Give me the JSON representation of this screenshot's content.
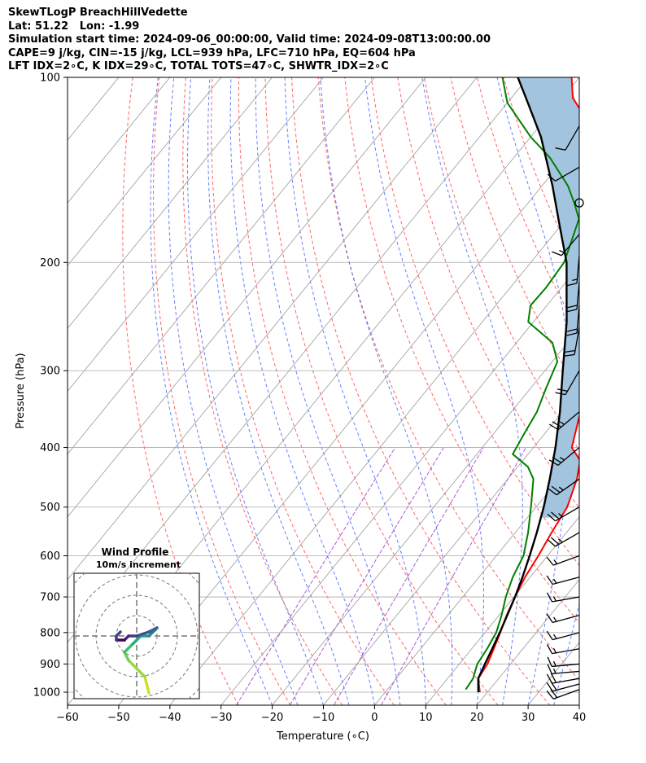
{
  "header": {
    "line1": "SkewTLogP BreachHillVedette",
    "line2": "Lat: 51.22   Lon: -1.99",
    "line3": "Simulation start time: 2024-09-06_00:00:00, Valid time: 2024-09-08T13:00:00.00",
    "line4": "CAPE=9 j/kg, CIN=-15 j/kg, LCL=939 hPa, LFC=710 hPa, EQ=604 hPa",
    "line5": "LFT IDX=2∘C, K IDX=29∘C, TOTAL TOTS=47∘C, SHWTR_IDX=2∘C"
  },
  "chart_data": {
    "type": "skew-t log-p",
    "xlabel": "Temperature (∘C)",
    "ylabel": "Pressure (hPa)",
    "xlim": [
      -60,
      40
    ],
    "ylim": [
      1050,
      100
    ],
    "y_scale": "log",
    "grid": true,
    "x_ticks": [
      "−60",
      "−50",
      "−40",
      "−30",
      "−20",
      "−10",
      "0",
      "10",
      "20",
      "30",
      "40"
    ],
    "y_ticks": [
      "100",
      "200",
      "300",
      "400",
      "500",
      "600",
      "700",
      "800",
      "900",
      "1000"
    ],
    "series": [
      {
        "color": "#ff0000",
        "points": [
          [
            18.5,
            1000
          ],
          [
            16,
            950
          ],
          [
            15.5,
            900
          ],
          [
            14.3,
            850
          ],
          [
            13,
            800
          ],
          [
            11.5,
            750
          ],
          [
            10.2,
            700
          ],
          [
            9,
            650
          ],
          [
            8.2,
            600
          ],
          [
            7.1,
            550
          ],
          [
            6.1,
            500
          ],
          [
            3.5,
            450
          ],
          [
            1.2,
            420
          ],
          [
            -2.5,
            400
          ],
          [
            -6.5,
            350
          ],
          [
            -8,
            300
          ],
          [
            -9.5,
            280
          ],
          [
            -10.5,
            260
          ],
          [
            -12,
            250
          ],
          [
            -15.2,
            230
          ],
          [
            -19.4,
            200
          ],
          [
            -24.5,
            180
          ],
          [
            -29,
            160
          ],
          [
            -33.2,
            150
          ],
          [
            -39,
            140
          ],
          [
            -46.8,
            130
          ],
          [
            -50,
            120
          ],
          [
            -58,
            108
          ],
          [
            -61.5,
            100
          ]
        ]
      },
      {
        "color": "#008000",
        "points": [
          [
            15.3,
            990
          ],
          [
            15,
            950
          ],
          [
            13.5,
            900
          ],
          [
            13,
            850
          ],
          [
            12.2,
            800
          ],
          [
            10.5,
            750
          ],
          [
            8.4,
            700
          ],
          [
            6.6,
            650
          ],
          [
            5.3,
            600
          ],
          [
            2.5,
            550
          ],
          [
            -1,
            500
          ],
          [
            -5,
            450
          ],
          [
            -8,
            430
          ],
          [
            -13,
            410
          ],
          [
            -14,
            380
          ],
          [
            -15,
            350
          ],
          [
            -17,
            320
          ],
          [
            -19,
            290
          ],
          [
            -23,
            270
          ],
          [
            -31,
            250
          ],
          [
            -33.2,
            235
          ],
          [
            -33,
            220
          ],
          [
            -33.5,
            200
          ],
          [
            -35.4,
            185
          ],
          [
            -37.5,
            170
          ],
          [
            -41,
            160
          ],
          [
            -45,
            150
          ],
          [
            -53,
            135
          ],
          [
            -60,
            125
          ],
          [
            -70,
            110
          ],
          [
            -75,
            100
          ]
        ]
      },
      {
        "color": "#000000",
        "points": [
          [
            18.2,
            1000
          ],
          [
            16,
            950
          ],
          [
            15,
            900
          ],
          [
            14,
            850
          ],
          [
            12.9,
            800
          ],
          [
            11.6,
            750
          ],
          [
            10.2,
            700
          ],
          [
            8.5,
            650
          ],
          [
            6.5,
            600
          ],
          [
            4.2,
            550
          ],
          [
            1.5,
            500
          ],
          [
            -1.8,
            450
          ],
          [
            -5.7,
            400
          ],
          [
            -10.5,
            350
          ],
          [
            -16.5,
            300
          ],
          [
            -23.5,
            250
          ],
          [
            -28,
            225
          ],
          [
            -33,
            200
          ],
          [
            -40,
            175
          ],
          [
            -48,
            150
          ],
          [
            -58,
            125
          ],
          [
            -66,
            110
          ],
          [
            -72,
            100
          ]
        ]
      }
    ],
    "cape_fill_color": "#a2c4df",
    "hodograph": {
      "title": "Wind Profile",
      "subtitle": "10m/s increment",
      "rings": 3,
      "points": [
        [
          1.5,
          -7
        ],
        [
          1,
          -5
        ],
        [
          -1,
          -3
        ],
        [
          -1.5,
          -2
        ],
        [
          -0.5,
          -1
        ],
        [
          0.5,
          0
        ],
        [
          1.5,
          0
        ],
        [
          2,
          0.5
        ],
        [
          2.5,
          1
        ],
        [
          1.5,
          0.5
        ],
        [
          0,
          0
        ],
        [
          -1,
          0
        ],
        [
          -1.5,
          -0.5
        ],
        [
          -2.5,
          -0.5
        ],
        [
          -2.5,
          0
        ],
        [
          -2,
          0.5
        ]
      ]
    },
    "wind_barbs": [
      {
        "p": 990,
        "dir": 250,
        "spd": 22
      },
      {
        "p": 970,
        "dir": 255,
        "spd": 22
      },
      {
        "p": 950,
        "dir": 260,
        "spd": 20
      },
      {
        "p": 925,
        "dir": 265,
        "spd": 18
      },
      {
        "p": 900,
        "dir": 265,
        "spd": 16
      },
      {
        "p": 850,
        "dir": 260,
        "spd": 15
      },
      {
        "p": 800,
        "dir": 255,
        "spd": 15
      },
      {
        "p": 750,
        "dir": 255,
        "spd": 15
      },
      {
        "p": 700,
        "dir": 260,
        "spd": 15
      },
      {
        "p": 650,
        "dir": 255,
        "spd": 15
      },
      {
        "p": 600,
        "dir": 250,
        "spd": 18
      },
      {
        "p": 550,
        "dir": 240,
        "spd": 25
      },
      {
        "p": 500,
        "dir": 240,
        "spd": 25
      },
      {
        "p": 450,
        "dir": 235,
        "spd": 25
      },
      {
        "p": 400,
        "dir": 230,
        "spd": 25
      },
      {
        "p": 350,
        "dir": 230,
        "spd": 25
      },
      {
        "p": 300,
        "dir": 210,
        "spd": 20
      },
      {
        "p": 255,
        "dir": 190,
        "spd": 20
      },
      {
        "p": 235,
        "dir": 185,
        "spd": 20
      },
      {
        "p": 215,
        "dir": 185,
        "spd": 20
      },
      {
        "p": 195,
        "dir": 185,
        "spd": 15
      },
      {
        "p": 180,
        "dir": 220,
        "spd": 15
      },
      {
        "p": 160,
        "dir": 0,
        "spd": 0
      },
      {
        "p": 140,
        "dir": 240,
        "spd": 10
      },
      {
        "p": 120,
        "dir": 210,
        "spd": 10
      }
    ]
  }
}
